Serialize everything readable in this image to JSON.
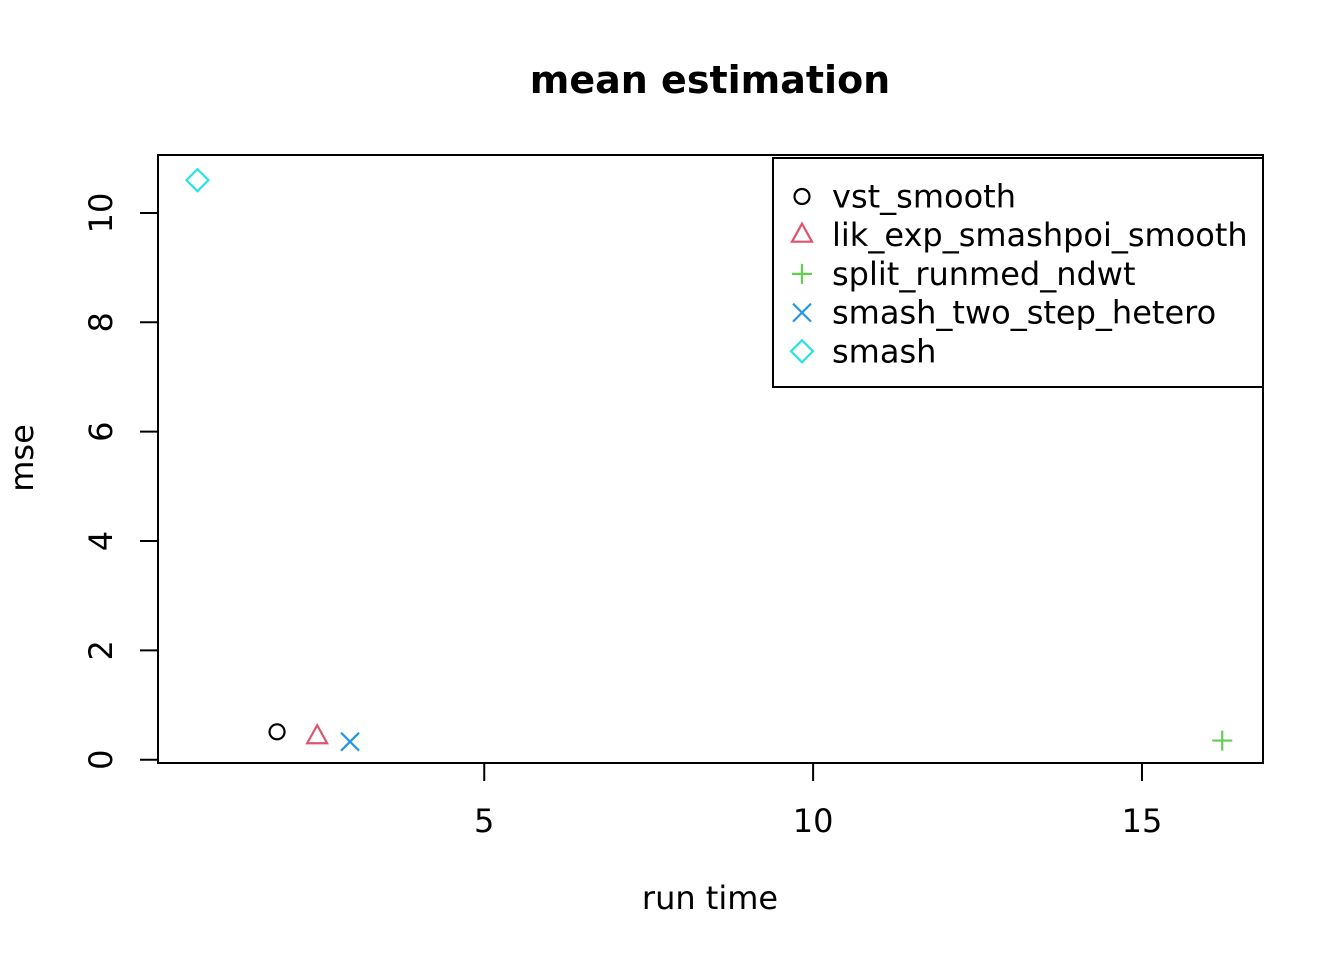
{
  "figure": {
    "title": "mean estimation",
    "xlabel": "run time",
    "ylabel": "mse"
  },
  "chart_data": {
    "type": "scatter",
    "title": "mean estimation",
    "xlabel": "run time",
    "ylabel": "mse",
    "xlim": [
      0.04,
      16.84
    ],
    "ylim": [
      -0.06,
      11.06
    ],
    "xticks": [
      5,
      10,
      15
    ],
    "yticks": [
      0,
      2,
      4,
      6,
      8,
      10
    ],
    "grid": false,
    "axis_color": "#000000",
    "background": "#ffffff",
    "legend": {
      "position": "topright",
      "border": true
    },
    "series": [
      {
        "name": "vst_smooth",
        "marker": "circle",
        "color": "#000000",
        "points": [
          {
            "x": 1.85,
            "y": 0.51
          }
        ]
      },
      {
        "name": "lik_exp_smashpoi_smooth",
        "marker": "triangle",
        "color": "#DF536B",
        "points": [
          {
            "x": 2.46,
            "y": 0.42
          }
        ]
      },
      {
        "name": "split_runmed_ndwt",
        "marker": "plus",
        "color": "#61D04F",
        "points": [
          {
            "x": 16.22,
            "y": 0.35
          }
        ]
      },
      {
        "name": "smash_two_step_hetero",
        "marker": "x",
        "color": "#2297E6",
        "points": [
          {
            "x": 2.96,
            "y": 0.33
          }
        ]
      },
      {
        "name": "smash",
        "marker": "diamond",
        "color": "#28E2E5",
        "points": [
          {
            "x": 0.64,
            "y": 10.6
          }
        ]
      }
    ]
  }
}
